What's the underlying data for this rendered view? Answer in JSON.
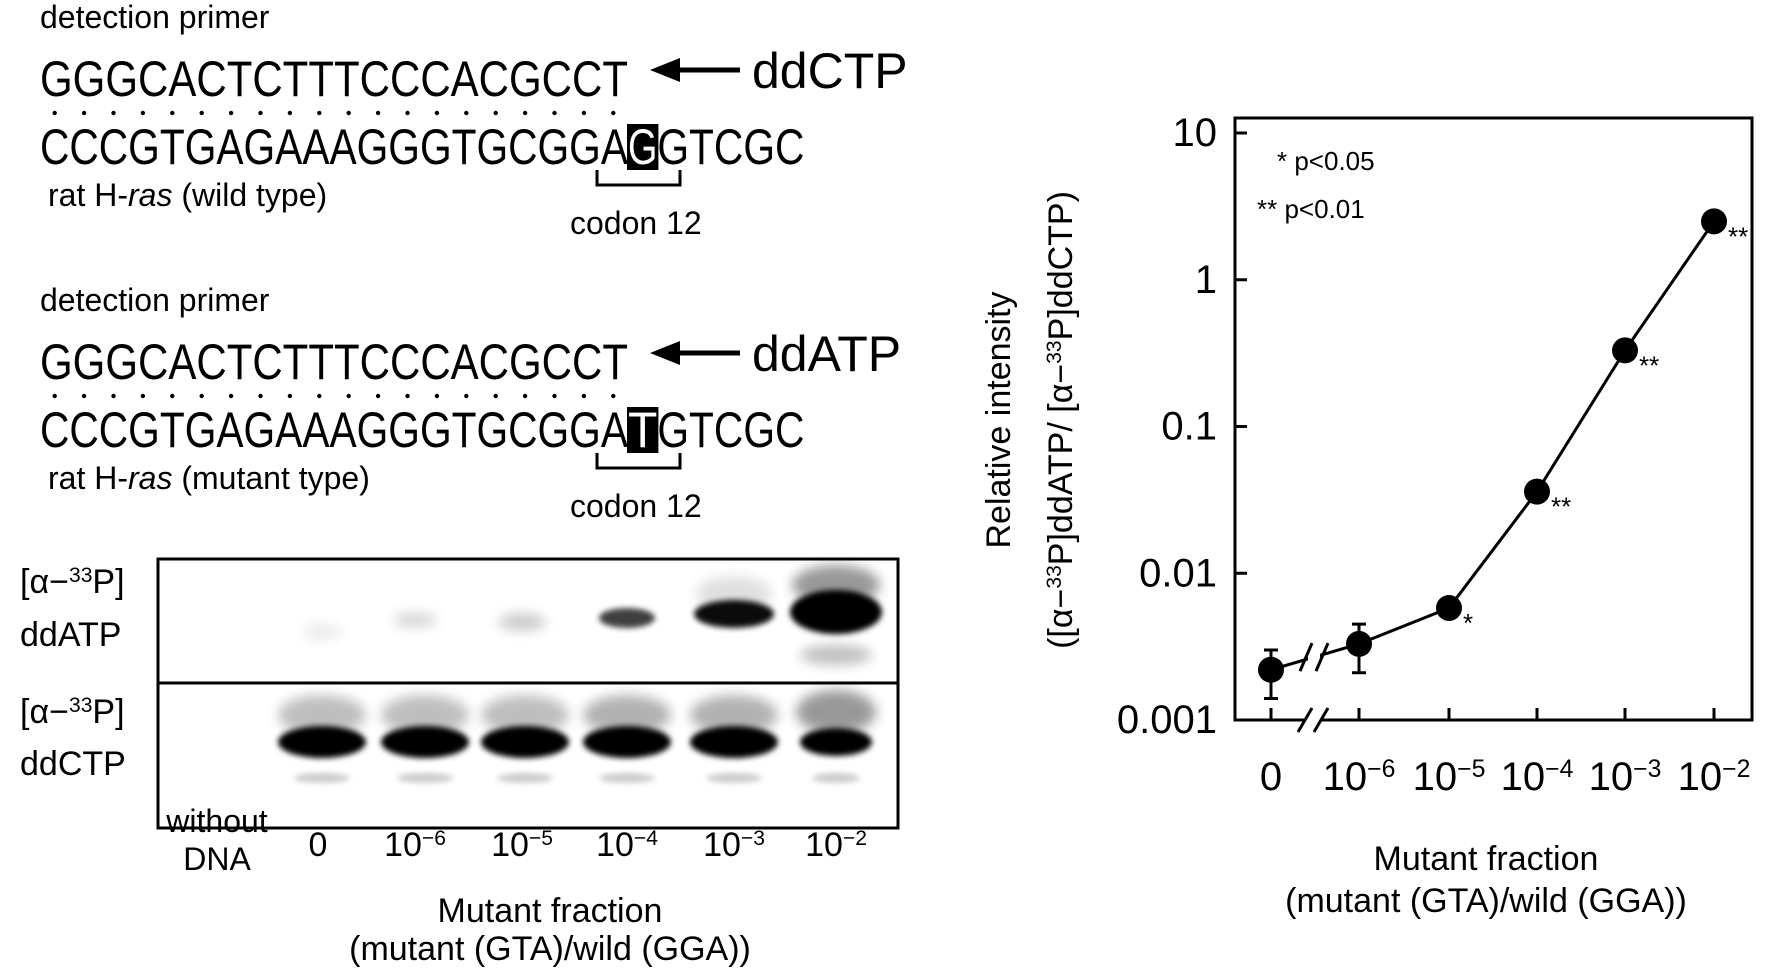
{
  "panel_a": {
    "wild_type": {
      "primer_label": "detection primer",
      "primer": "GGGCACTCTTTCCCACGCCT",
      "nucleotide": "ddCTP",
      "template": [
        "CCCGTGAGAAAGGGTGCGGA",
        "G",
        "GTCGC"
      ],
      "gene": [
        {
          "t": "rat H-"
        },
        {
          "i": "ras"
        },
        {
          "t": " (wild type)"
        }
      ],
      "codon": "codon 12"
    },
    "mutant_type": {
      "primer_label": "detection primer",
      "primer": "GGGCACTCTTTCCCACGCCT",
      "nucleotide": "ddATP",
      "template": [
        "CCCGTGAGAAAGGGTGCGGA",
        "T",
        "GTCGC"
      ],
      "gene": [
        {
          "t": "rat H-"
        },
        {
          "i": "ras"
        },
        {
          "t": " (mutant type)"
        }
      ],
      "codon": "codon 12"
    }
  },
  "gel": {
    "rows": [
      {
        "label": [
          {
            "t": "[α−"
          },
          {
            "sup": "33"
          },
          {
            "t": "P]"
          }
        ],
        "nucleotide": "ddATP"
      },
      {
        "label": [
          {
            "t": "[α−"
          },
          {
            "sup": "33"
          },
          {
            "t": "P]"
          }
        ],
        "nucleotide": "ddCTP"
      }
    ],
    "no_dna_label": [
      "without",
      "DNA"
    ],
    "lanes": [
      [
        {
          "t": "0"
        }
      ],
      [
        {
          "t": "10"
        },
        {
          "sup": "−6"
        }
      ],
      [
        {
          "t": "10"
        },
        {
          "sup": "−5"
        }
      ],
      [
        {
          "t": "10"
        },
        {
          "sup": "−4"
        }
      ],
      [
        {
          "t": "10"
        },
        {
          "sup": "−3"
        }
      ],
      [
        {
          "t": "10"
        },
        {
          "sup": "−2"
        }
      ]
    ],
    "xlabel": [
      "Mutant fraction",
      "(mutant (GTA)/wild (GGA))"
    ]
  },
  "chart_data": {
    "type": "line",
    "ylabel": [
      "Relative intensity",
      [
        {
          "t": "([α−"
        },
        {
          "sup": "33"
        },
        {
          "t": "P]ddATP/ [α−"
        },
        {
          "sup": "33"
        },
        {
          "t": "P]ddCTP)"
        }
      ]
    ],
    "xlabel": [
      "Mutant fraction",
      "(mutant (GTA)/wild (GGA))"
    ],
    "categories": [
      [
        {
          "t": "0"
        }
      ],
      [
        {
          "t": "10"
        },
        {
          "sup": "−6"
        }
      ],
      [
        {
          "t": "10"
        },
        {
          "sup": "−5"
        }
      ],
      [
        {
          "t": "10"
        },
        {
          "sup": "−4"
        }
      ],
      [
        {
          "t": "10"
        },
        {
          "sup": "−3"
        }
      ],
      [
        {
          "t": "10"
        },
        {
          "sup": "−2"
        }
      ]
    ],
    "values": [
      0.0022,
      0.0033,
      0.0058,
      0.036,
      0.33,
      2.5
    ],
    "errors": [
      0.0008,
      0.0012,
      null,
      null,
      null,
      null
    ],
    "significance": [
      null,
      null,
      "*",
      "**",
      "**",
      "**"
    ],
    "annotations": [
      "* p<0.05",
      "** p<0.01"
    ],
    "color": "#000000",
    "log_y": true,
    "ylim": [
      0.001,
      10
    ],
    "yticks": [
      0.001,
      0.01,
      0.1,
      1,
      10
    ]
  }
}
